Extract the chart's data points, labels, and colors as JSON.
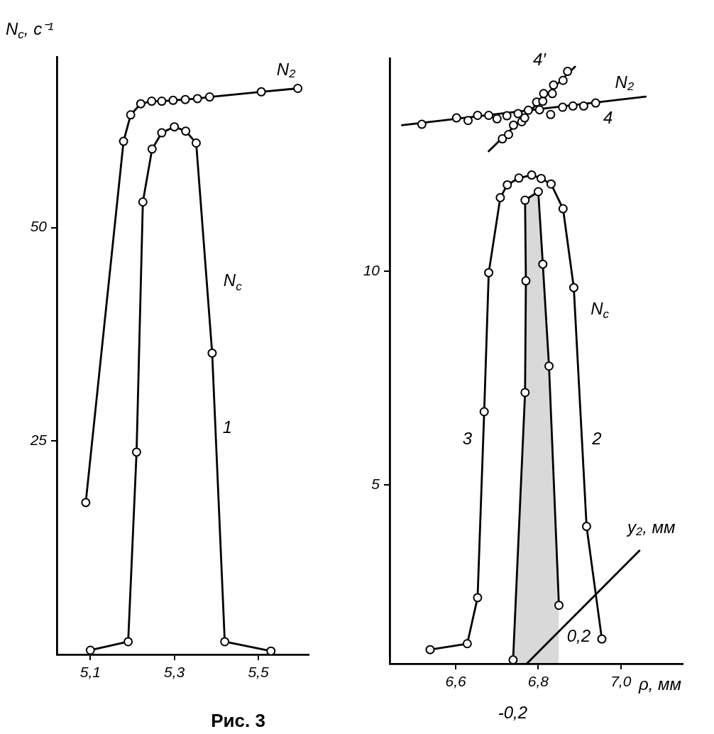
{
  "chart_data": [
    {
      "type": "line",
      "ylabel": "N$_{c}$, с⁻¹",
      "xlim": [
        5.02,
        5.62
      ],
      "ylim": [
        0,
        70
      ],
      "xticks": [
        {
          "value": 5.1,
          "label": "5,1"
        },
        {
          "value": 5.3,
          "label": "5,3"
        },
        {
          "value": 5.5,
          "label": "5,5"
        }
      ],
      "yticks": [
        25,
        50
      ],
      "grid": false,
      "legend": false,
      "marker": "circle",
      "annotations": [
        "N₂",
        "N$_{c}$",
        "1",
        "Рис. 3"
      ],
      "series": [
        {
          "color": "#000000",
          "x": [
            5.089,
            5.179,
            5.196,
            5.22,
            5.246,
            5.27,
            5.297,
            5.326,
            5.355,
            5.384,
            5.507,
            5.594
          ],
          "values": [
            17.8,
            60.1,
            63.2,
            64.5,
            64.8,
            64.8,
            64.9,
            65.0,
            65.1,
            65.3,
            65.9,
            66.3
          ]
        },
        {
          "color": "#000000",
          "x": [
            5.1,
            5.19,
            5.21,
            5.225,
            5.247,
            5.27,
            5.3,
            5.327,
            5.352,
            5.39,
            5.42,
            5.53
          ],
          "values": [
            0.5,
            1.5,
            23.7,
            53,
            59.2,
            61.1,
            61.8,
            61.3,
            59.9,
            35.3,
            1.5,
            0.4
          ]
        }
      ]
    },
    {
      "type": "line",
      "xlabel": "ρ, мм",
      "xlim": [
        6.44,
        7.15
      ],
      "ylim": [
        0.8,
        15
      ],
      "xticks": [
        {
          "value": 6.6,
          "label": "6,6"
        },
        {
          "value": 6.8,
          "label": "6,8"
        },
        {
          "value": 7.0,
          "label": "7,0"
        }
      ],
      "yticks": [
        5,
        10
      ],
      "grid": false,
      "legend": false,
      "marker": "circle",
      "annotations": [
        "4′",
        "N₂",
        "4",
        "N$_{c}$",
        "3",
        "2",
        "0,2",
        "y₂, мм",
        "-0,2"
      ],
      "series": [
        {
          "color": "#000000",
          "x": [
            6.538,
            6.628,
            6.653,
            6.669,
            6.68,
            6.708,
            6.725,
            6.753,
            6.784,
            6.807,
            6.831,
            6.86,
            6.886,
            6.917,
            6.954
          ],
          "values": [
            1.13,
            1.27,
            2.35,
            6.71,
            9.97,
            11.73,
            12.03,
            12.19,
            12.26,
            12.18,
            12.05,
            11.47,
            9.62,
            4.02,
            1.38
          ]
        },
        {
          "type": "area",
          "color": "#000000",
          "x": [
            6.739,
            6.768,
            6.77,
            6.768,
            6.784,
            6.8,
            6.811,
            6.826,
            6.85
          ],
          "values": [
            0.89,
            7.16,
            9.78,
            11.67,
            null,
            11.87,
            10.17,
            7.78,
            2.17
          ]
        },
        {
          "type": "scatter",
          "color": "#000000",
          "x": [
            6.518,
            6.602,
            6.63,
            6.653,
            6.68,
            6.7,
            6.724,
            6.751,
            6.776,
            6.803,
            6.83,
            6.859,
            6.884,
            6.91,
            6.939
          ],
          "values": [
            13.45,
            13.6,
            13.54,
            13.66,
            13.66,
            13.58,
            13.65,
            13.7,
            13.78,
            13.79,
            13.68,
            13.85,
            13.88,
            13.88,
            13.95
          ]
        },
        {
          "type": "scatter",
          "color": "#000000",
          "x": [
            6.713,
            6.728,
            6.74,
            6.76,
            6.767,
            6.796,
            6.811,
            6.813,
            6.834,
            6.837,
            6.86,
            6.871
          ],
          "values": [
            13.11,
            13.21,
            13.43,
            13.51,
            13.6,
            13.97,
            13.99,
            14.17,
            14.17,
            14.37,
            14.48,
            14.69
          ]
        },
        {
          "color": "#000000",
          "marker": "none",
          "x": [
            6.47,
            7.06
          ],
          "values": [
            13.43,
            14.1
          ]
        },
        {
          "color": "#000000",
          "marker": "none",
          "x": [
            6.68,
            6.889
          ],
          "values": [
            12.82,
            14.8
          ]
        },
        {
          "color": "#000000",
          "marker": "none",
          "x": [
            6.772,
            7.045
          ],
          "values": [
            0.8,
            3.45
          ]
        }
      ]
    }
  ]
}
